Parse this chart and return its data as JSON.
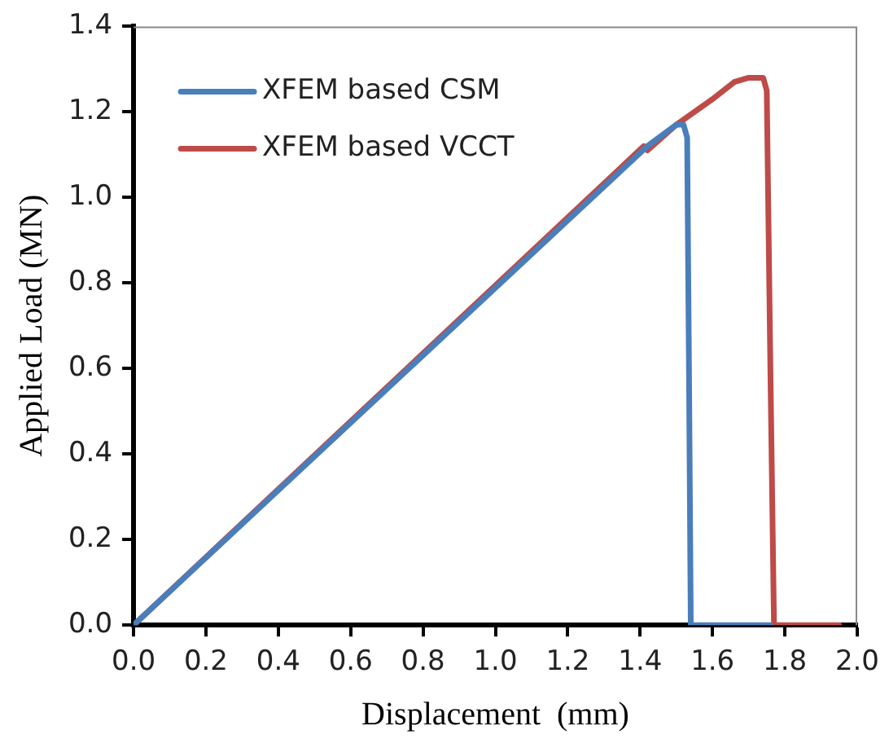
{
  "chart_data": {
    "type": "line",
    "xlabel": "Displacement  (mm)",
    "ylabel": "Applied Load (MN)",
    "xlim": [
      0,
      2.0
    ],
    "xticks": [
      {
        "value": 0,
        "label": "0.0"
      },
      0.2,
      0.4,
      0.6,
      0.8,
      {
        "value": 1,
        "label": "1.0"
      },
      1.2,
      1.4,
      1.6,
      1.8,
      {
        "value": 2,
        "label": "2.0"
      }
    ],
    "ylim": [
      0,
      1.4
    ],
    "yticks": [
      {
        "value": 0,
        "label": "0.0"
      },
      0.2,
      0.4,
      0.6,
      0.8,
      {
        "value": 1,
        "label": "1.0"
      },
      1.2,
      1.4
    ],
    "grid": false,
    "legend": "top left",
    "marker": "none",
    "line_style": "solid",
    "series": [
      {
        "name": "XFEM based CSM",
        "color": "#4a7ebb",
        "x": [
          0,
          1.42,
          1.5,
          1.52,
          1.53,
          1.535,
          1.54,
          1.76
        ],
        "values": [
          0,
          1.12,
          1.17,
          1.17,
          1.14,
          0.6,
          0,
          0
        ]
      },
      {
        "name": "XFEM based VCCT",
        "color": "#be4b48",
        "x": [
          0,
          1.41,
          1.42,
          1.5,
          1.6,
          1.66,
          1.7,
          1.74,
          1.75,
          1.76,
          1.77,
          1.95
        ],
        "values": [
          0,
          1.12,
          1.11,
          1.17,
          1.23,
          1.27,
          1.28,
          1.28,
          1.25,
          0.6,
          0,
          0
        ]
      }
    ]
  }
}
